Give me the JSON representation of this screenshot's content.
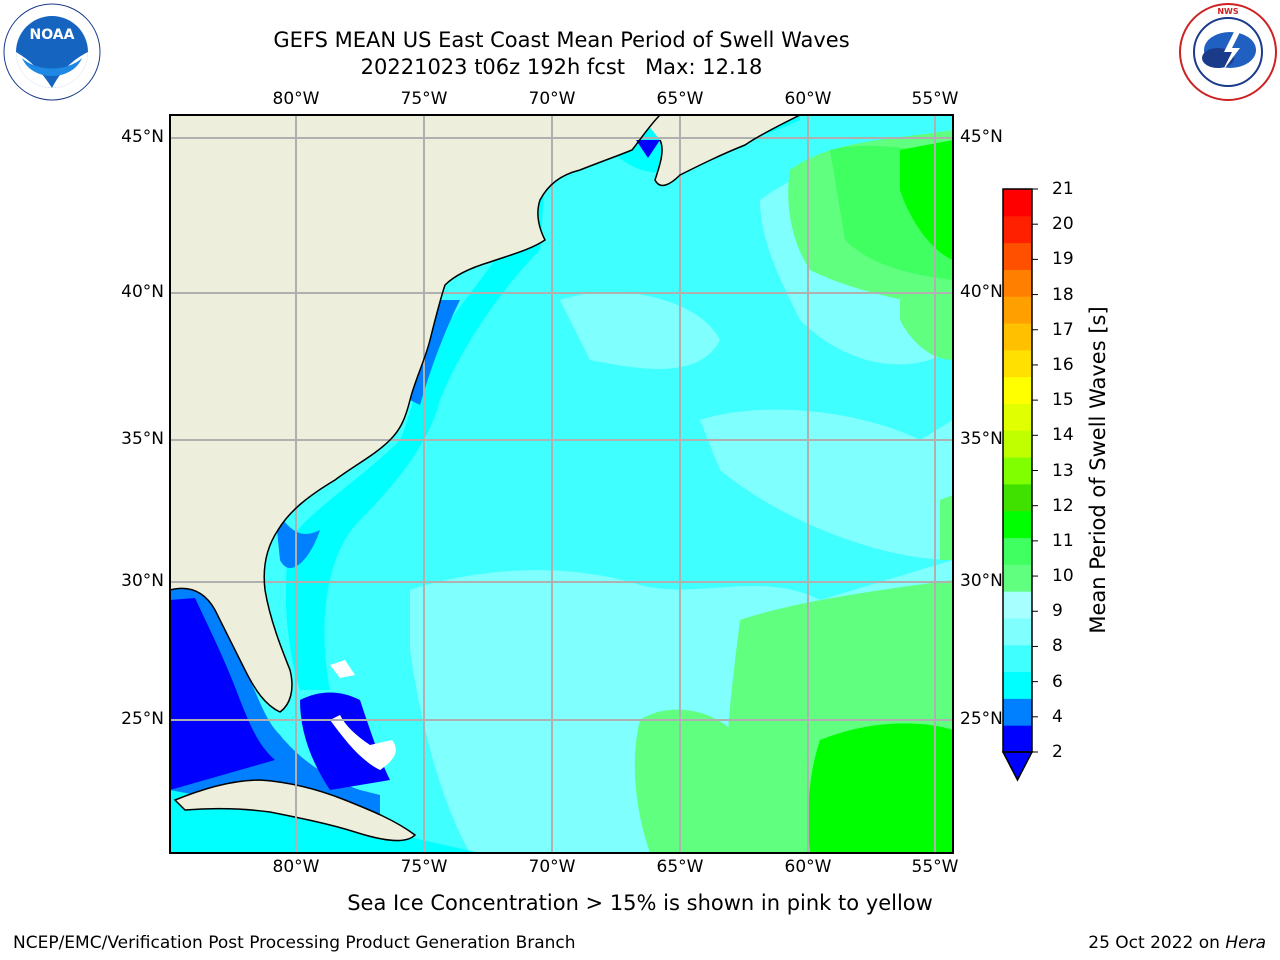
{
  "title": {
    "line1": "GEFS MEAN US East Coast Mean Period of Swell Waves",
    "line2": "20221023 t06z 192h fcst   Max: 12.18"
  },
  "logos": {
    "left": {
      "text": "NOAA",
      "ring_text": "NATIONAL OCEANIC AND ATMOSPHERIC ADMINISTRATION · U.S. DEPARTMENT OF COMMERCE"
    },
    "right": {
      "ring_text": "NATIONAL WEATHER SERVICE"
    }
  },
  "map": {
    "lon_labels": [
      "80°W",
      "75°W",
      "70°W",
      "65°W",
      "60°W",
      "55°W"
    ],
    "lat_labels": [
      "45°N",
      "40°N",
      "35°N",
      "30°N",
      "25°N"
    ]
  },
  "colorbar": {
    "label": "Mean Period of Swell Waves [s]",
    "ticks": [
      "21",
      "20",
      "19",
      "18",
      "17",
      "16",
      "15",
      "14",
      "13",
      "12",
      "11",
      "10",
      "9",
      "8",
      "6",
      "4",
      "2"
    ],
    "colors": [
      "#0000ff",
      "#0080ff",
      "#00ffff",
      "#40ffff",
      "#80ffff",
      "#a8ffff",
      "#60ff80",
      "#40ff60",
      "#00ff00",
      "#40e000",
      "#80ff00",
      "#c0ff00",
      "#e0ff00",
      "#ffff00",
      "#ffe000",
      "#ffc000",
      "#ffa000",
      "#ff8000",
      "#ff5000",
      "#ff2000",
      "#ff0000"
    ]
  },
  "footer": {
    "note": "Sea Ice Concentration > 15% is shown in pink to yellow",
    "left": "NCEP/EMC/Verification Post Processing Product Generation Branch",
    "date": "25 Oct 2022 on ",
    "machine": "Hera"
  },
  "colors": {
    "land": "#eeeedc",
    "ocean_light": "#80ffff",
    "ocean_cyan": "#40ffff",
    "ocean_bright": "#00ffff",
    "ocean_blue": "#0080ff",
    "ocean_deep": "#0000ff",
    "swell_green": "#60ff80",
    "swell_green2": "#40ff60",
    "swell_green3": "#00ff00",
    "grid": "#b0b0b0"
  }
}
